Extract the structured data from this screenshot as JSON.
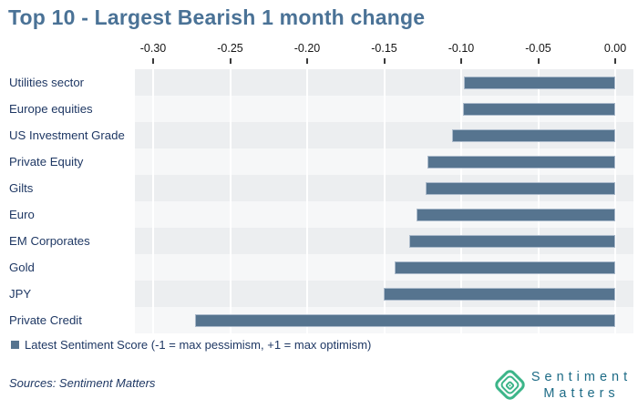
{
  "title": "Top 10 - Largest Bearish 1 month change",
  "chart_data": {
    "type": "bar",
    "orientation": "horizontal",
    "title": "Top 10 - Largest Bearish 1 month change",
    "categories": [
      "Utilities sector",
      "Europe equities",
      "US Investment Grade",
      "Private Equity",
      "Gilts",
      "Euro",
      "EM Corporates",
      "Gold",
      "JPY",
      "Private Credit"
    ],
    "values": [
      -0.098,
      -0.099,
      -0.106,
      -0.122,
      -0.123,
      -0.129,
      -0.134,
      -0.143,
      -0.15,
      -0.273
    ],
    "x_tick_labels": [
      "-0.30",
      "-0.25",
      "-0.20",
      "-0.15",
      "-0.10",
      "-0.05",
      "0.00"
    ],
    "x_tick_values": [
      -0.3,
      -0.25,
      -0.2,
      -0.15,
      -0.1,
      -0.05,
      0.0
    ],
    "xlim": [
      -0.3123,
      0.0119
    ],
    "xlabel": "",
    "ylabel": "",
    "grid": "vertical white gridlines over alternating row stripes, axis on top",
    "legend_position": "bottom-left",
    "legend": "Latest Sentiment Score (-1 = max pessimism, +1 = max optimism)"
  },
  "legend": {
    "label": "Latest Sentiment Score (-1 = max pessimism, +1 = max optimism)"
  },
  "footer": {
    "sources": "Sources: Sentiment Matters"
  },
  "logo": {
    "line1": "Sentiment",
    "line2": "Matters",
    "icon": "concentric-rounded-diamond"
  },
  "colors": {
    "title": "#4a7296",
    "bar": "#56748f",
    "bar_border": "rgba(186,199,214,0.85)",
    "row_label": "#1f3864",
    "axis_label": "#161616",
    "stripe_dark": "#eceef0",
    "stripe_light": "#f6f7f8",
    "gridline": "#ffffff",
    "legend_text": "#1f3864",
    "logo_green": "#3cb589",
    "logo_teal": "#1d6b86",
    "background": "#ffffff"
  }
}
